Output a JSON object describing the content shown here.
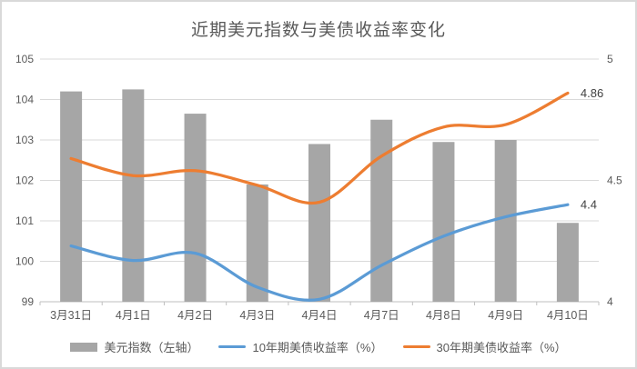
{
  "window": {
    "background": "#ffffff",
    "border_color": "#d9d9d9"
  },
  "chart_data": {
    "type": "combo-bar-line",
    "title": "近期美元指数与美债收益率变化",
    "categories": [
      "3月31日",
      "4月1日",
      "4月2日",
      "4月3日",
      "4月4日",
      "4月7日",
      "4月8日",
      "4月9日",
      "4月10日"
    ],
    "series": [
      {
        "name": "美元指数（左轴）",
        "type": "bar",
        "axis": "left",
        "color": "#a6a6a6",
        "values": [
          104.2,
          104.25,
          103.65,
          101.9,
          102.9,
          103.5,
          102.95,
          103.0,
          100.95
        ]
      },
      {
        "name": "10年期美债收益率（%）",
        "type": "line",
        "axis": "right",
        "color": "#5b9bd5",
        "values": [
          4.23,
          4.17,
          4.2,
          4.06,
          4.01,
          4.15,
          4.27,
          4.35,
          4.4
        ],
        "end_label": "4.4"
      },
      {
        "name": "30年期美债收益率（%）",
        "type": "line",
        "axis": "right",
        "color": "#ed7d31",
        "values": [
          4.59,
          4.52,
          4.54,
          4.48,
          4.41,
          4.6,
          4.72,
          4.73,
          4.86
        ],
        "end_label": "4.86"
      }
    ],
    "left_axis": {
      "min": 99,
      "max": 105,
      "ticks": [
        "99",
        "100",
        "101",
        "102",
        "103",
        "104",
        "105"
      ]
    },
    "right_axis": {
      "min": 4,
      "max": 5,
      "ticks": [
        "4",
        "4.5",
        "5"
      ],
      "tick_values": [
        4,
        4.5,
        5
      ]
    },
    "grid": true,
    "legend_position": "bottom",
    "grid_color": "#d9d9d9",
    "axis_line_color": "#bfbfbf",
    "axis_text_color": "#595959",
    "point_label_color": "#404040"
  }
}
